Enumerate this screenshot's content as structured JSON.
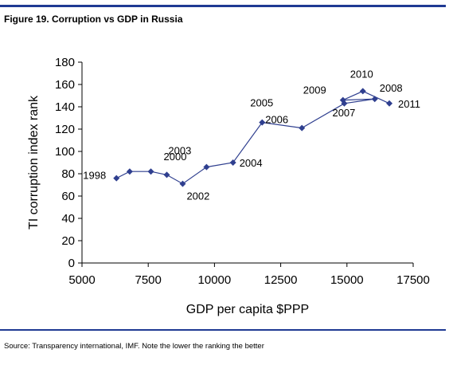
{
  "header": {
    "title": "Figure 19. Corruption vs GDP in Russia"
  },
  "footer": {
    "source": "Source: Transparency international, IMF.  Note the lower the ranking the better"
  },
  "colors": {
    "rule": "#1f3a93",
    "series": "#2f3f8f"
  },
  "chart_data": {
    "type": "line",
    "title": "",
    "xlabel": "GDP per capita $PPP",
    "ylabel": "TI corruption index rank",
    "xlim": [
      5000,
      17500
    ],
    "ylim": [
      0,
      180
    ],
    "xticks": [
      5000,
      7500,
      10000,
      12500,
      15000,
      17500
    ],
    "yticks": [
      0,
      20,
      40,
      60,
      80,
      100,
      120,
      140,
      160,
      180
    ],
    "grid": false,
    "legend": "none",
    "series": [
      {
        "points": [
          {
            "x": 6300,
            "y": 76,
            "label": "1998"
          },
          {
            "x": 6800,
            "y": 82,
            "label": ""
          },
          {
            "x": 7600,
            "y": 82,
            "label": "2000"
          },
          {
            "x": 8200,
            "y": 79,
            "label": ""
          },
          {
            "x": 8800,
            "y": 71,
            "label": "2002"
          },
          {
            "x": 9700,
            "y": 86,
            "label": "2003"
          },
          {
            "x": 10700,
            "y": 90,
            "label": "2004"
          },
          {
            "x": 11800,
            "y": 126,
            "label": "2005"
          },
          {
            "x": 13300,
            "y": 121,
            "label": "2006"
          },
          {
            "x": 14900,
            "y": 143,
            "label": "2007"
          },
          {
            "x": 16050,
            "y": 147,
            "label": "2008"
          },
          {
            "x": 14850,
            "y": 146,
            "label": "2009"
          },
          {
            "x": 15600,
            "y": 154,
            "label": "2010"
          },
          {
            "x": 16600,
            "y": 143,
            "label": "2011"
          }
        ]
      }
    ]
  }
}
